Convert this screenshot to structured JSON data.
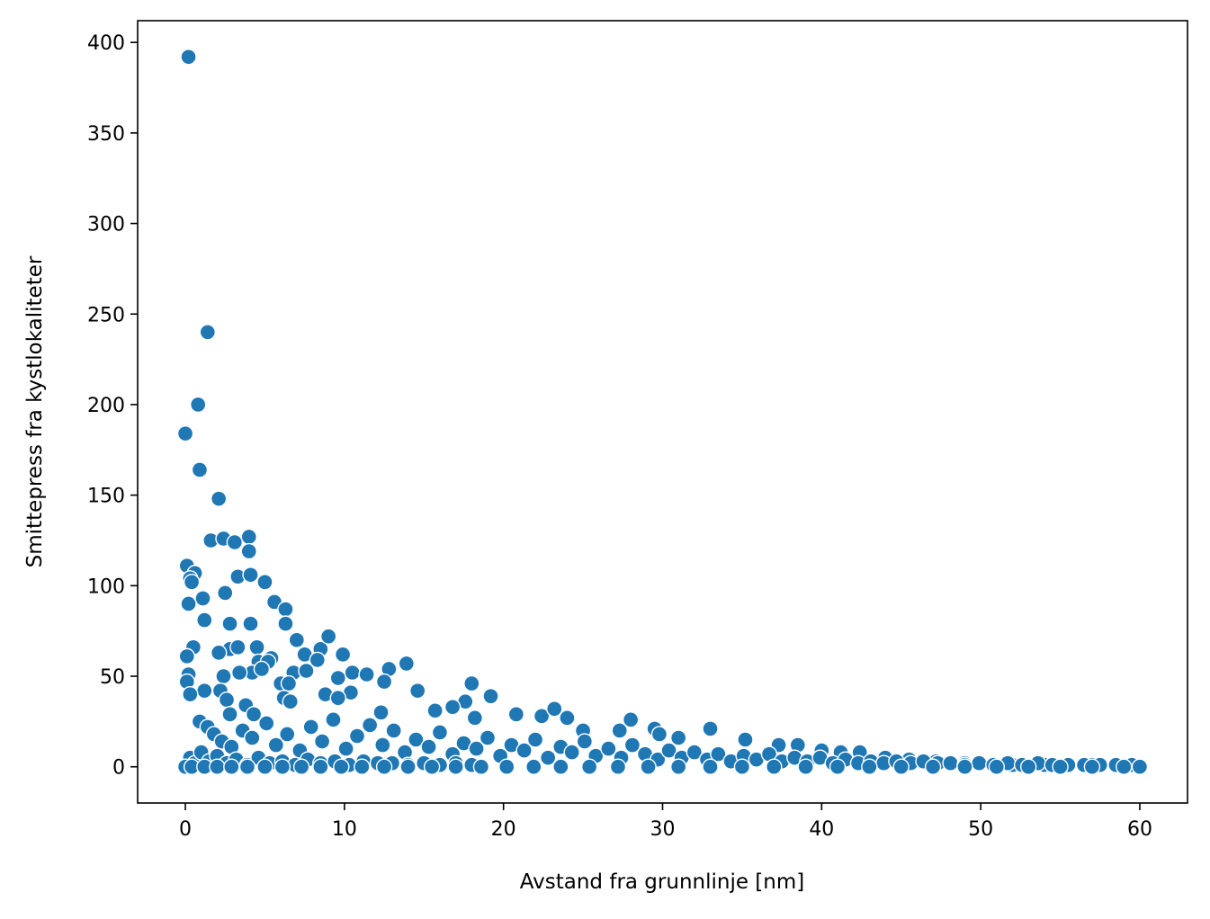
{
  "chart_data": {
    "type": "scatter",
    "title": "",
    "xlabel": "Avstand fra grunnlinje [nm]",
    "ylabel": "Smittepress fra kystlokaliteter",
    "xlim": [
      -3,
      63
    ],
    "ylim": [
      -20,
      412
    ],
    "xticks": [
      0,
      10,
      20,
      30,
      40,
      50,
      60
    ],
    "yticks": [
      0,
      50,
      100,
      150,
      200,
      250,
      300,
      350,
      400
    ],
    "grid": false,
    "legend": "none",
    "colors": {
      "marker": "#1f77b4",
      "marker_edge": "#ffffff",
      "axes": "#000000",
      "background": "#ffffff"
    },
    "series": [
      {
        "points": [
          [
            0.2,
            392
          ],
          [
            1.4,
            240
          ],
          [
            0.8,
            200
          ],
          [
            0.0,
            184
          ],
          [
            0.9,
            164
          ],
          [
            2.1,
            148
          ],
          [
            1.6,
            125
          ],
          [
            2.4,
            126
          ],
          [
            3.1,
            124
          ],
          [
            4.0,
            127
          ],
          [
            4.0,
            119
          ],
          [
            0.1,
            111
          ],
          [
            0.6,
            107
          ],
          [
            3.3,
            105
          ],
          [
            4.1,
            106
          ],
          [
            0.3,
            104
          ],
          [
            0.4,
            102
          ],
          [
            5.0,
            102
          ],
          [
            2.5,
            96
          ],
          [
            1.1,
            93
          ],
          [
            5.6,
            91
          ],
          [
            0.2,
            90
          ],
          [
            6.3,
            87
          ],
          [
            1.2,
            81
          ],
          [
            2.8,
            79
          ],
          [
            4.1,
            79
          ],
          [
            6.3,
            79
          ],
          [
            0.5,
            66
          ],
          [
            2.8,
            65
          ],
          [
            3.3,
            66
          ],
          [
            4.5,
            66
          ],
          [
            7.0,
            70
          ],
          [
            8.5,
            65
          ],
          [
            9.0,
            72
          ],
          [
            2.1,
            63
          ],
          [
            5.4,
            60
          ],
          [
            9.9,
            62
          ],
          [
            7.5,
            62
          ],
          [
            0.1,
            61
          ],
          [
            4.6,
            58
          ],
          [
            5.2,
            58
          ],
          [
            8.3,
            59
          ],
          [
            12.8,
            54
          ],
          [
            13.9,
            57
          ],
          [
            4.2,
            52
          ],
          [
            3.4,
            52
          ],
          [
            0.2,
            51
          ],
          [
            2.4,
            50
          ],
          [
            4.8,
            54
          ],
          [
            6.8,
            52
          ],
          [
            7.6,
            53
          ],
          [
            10.5,
            52
          ],
          [
            11.4,
            51
          ],
          [
            9.6,
            49
          ],
          [
            12.5,
            47
          ],
          [
            6.0,
            46
          ],
          [
            6.5,
            46
          ],
          [
            0.1,
            47
          ],
          [
            14.6,
            42
          ],
          [
            1.2,
            42
          ],
          [
            2.2,
            42
          ],
          [
            10.4,
            41
          ],
          [
            8.8,
            40
          ],
          [
            0.3,
            40
          ],
          [
            17.6,
            36
          ],
          [
            18.0,
            46
          ],
          [
            19.2,
            39
          ],
          [
            9.6,
            38
          ],
          [
            6.2,
            38
          ],
          [
            6.6,
            36
          ],
          [
            2.6,
            37
          ],
          [
            3.8,
            34
          ],
          [
            4.3,
            29
          ],
          [
            2.8,
            29
          ],
          [
            12.3,
            30
          ],
          [
            15.7,
            31
          ],
          [
            16.8,
            33
          ],
          [
            18.2,
            27
          ],
          [
            20.8,
            29
          ],
          [
            22.4,
            28
          ],
          [
            23.2,
            32
          ],
          [
            24.0,
            27
          ],
          [
            25.0,
            20
          ],
          [
            27.3,
            20
          ],
          [
            28.0,
            26
          ],
          [
            29.5,
            21
          ],
          [
            29.8,
            18
          ],
          [
            31.0,
            16
          ],
          [
            33.0,
            21
          ],
          [
            35.2,
            15
          ],
          [
            37.3,
            12
          ],
          [
            38.5,
            12
          ],
          [
            40.0,
            9
          ],
          [
            41.2,
            8
          ],
          [
            42.4,
            8
          ],
          [
            44.0,
            5
          ],
          [
            45.5,
            4
          ],
          [
            47.2,
            3
          ],
          [
            49.0,
            2
          ],
          [
            52.0,
            1
          ],
          [
            54.0,
            1
          ],
          [
            57.0,
            1
          ],
          [
            0.9,
            25
          ],
          [
            1.4,
            22
          ],
          [
            1.8,
            18
          ],
          [
            2.3,
            14
          ],
          [
            2.9,
            11
          ],
          [
            3.6,
            20
          ],
          [
            4.2,
            16
          ],
          [
            5.1,
            24
          ],
          [
            5.7,
            12
          ],
          [
            6.4,
            18
          ],
          [
            7.2,
            9
          ],
          [
            7.9,
            22
          ],
          [
            8.6,
            14
          ],
          [
            9.3,
            26
          ],
          [
            10.1,
            10
          ],
          [
            10.8,
            17
          ],
          [
            11.6,
            23
          ],
          [
            12.4,
            12
          ],
          [
            13.1,
            20
          ],
          [
            13.8,
            8
          ],
          [
            14.5,
            15
          ],
          [
            15.3,
            11
          ],
          [
            16.0,
            19
          ],
          [
            16.8,
            7
          ],
          [
            17.5,
            13
          ],
          [
            18.3,
            10
          ],
          [
            19.0,
            16
          ],
          [
            19.8,
            6
          ],
          [
            20.5,
            12
          ],
          [
            21.3,
            9
          ],
          [
            22.0,
            15
          ],
          [
            22.8,
            5
          ],
          [
            23.6,
            11
          ],
          [
            24.3,
            8
          ],
          [
            25.1,
            14
          ],
          [
            25.8,
            6
          ],
          [
            26.6,
            10
          ],
          [
            27.4,
            5
          ],
          [
            28.1,
            12
          ],
          [
            28.9,
            7
          ],
          [
            29.7,
            4
          ],
          [
            30.4,
            9
          ],
          [
            31.2,
            5
          ],
          [
            32.0,
            8
          ],
          [
            32.8,
            4
          ],
          [
            33.5,
            7
          ],
          [
            34.3,
            3
          ],
          [
            35.1,
            6
          ],
          [
            35.9,
            4
          ],
          [
            36.7,
            7
          ],
          [
            37.5,
            3
          ],
          [
            38.3,
            5
          ],
          [
            39.1,
            3
          ],
          [
            39.9,
            5
          ],
          [
            40.7,
            2
          ],
          [
            41.5,
            4
          ],
          [
            42.3,
            2
          ],
          [
            43.1,
            3
          ],
          [
            43.9,
            2
          ],
          [
            44.7,
            3
          ],
          [
            45.6,
            2
          ],
          [
            46.4,
            3
          ],
          [
            47.3,
            2
          ],
          [
            48.1,
            2
          ],
          [
            49.0,
            1
          ],
          [
            49.9,
            2
          ],
          [
            50.8,
            1
          ],
          [
            51.7,
            2
          ],
          [
            52.6,
            1
          ],
          [
            53.6,
            2
          ],
          [
            54.5,
            1
          ],
          [
            55.5,
            1
          ],
          [
            56.5,
            1
          ],
          [
            57.5,
            1
          ],
          [
            58.5,
            1
          ],
          [
            59.5,
            1
          ],
          [
            0.3,
            5
          ],
          [
            0.6,
            2
          ],
          [
            1.0,
            8
          ],
          [
            1.5,
            3
          ],
          [
            2.0,
            6
          ],
          [
            2.6,
            2
          ],
          [
            3.2,
            4
          ],
          [
            3.9,
            1
          ],
          [
            4.6,
            5
          ],
          [
            5.3,
            2
          ],
          [
            6.1,
            3
          ],
          [
            6.9,
            1
          ],
          [
            7.7,
            4
          ],
          [
            8.5,
            2
          ],
          [
            9.4,
            3
          ],
          [
            10.3,
            1
          ],
          [
            11.2,
            3
          ],
          [
            12.1,
            2
          ],
          [
            13.0,
            2
          ],
          [
            14.0,
            1
          ],
          [
            15.0,
            2
          ],
          [
            16.0,
            1
          ],
          [
            17.0,
            2
          ],
          [
            18.0,
            1
          ],
          [
            0.0,
            0
          ],
          [
            0.4,
            0
          ],
          [
            1.2,
            0
          ],
          [
            2.0,
            0
          ],
          [
            2.9,
            0
          ],
          [
            3.9,
            0
          ],
          [
            5.0,
            0
          ],
          [
            6.1,
            0
          ],
          [
            7.3,
            0
          ],
          [
            8.5,
            0
          ],
          [
            9.8,
            0
          ],
          [
            11.1,
            0
          ],
          [
            12.5,
            0
          ],
          [
            14.0,
            0
          ],
          [
            15.5,
            0
          ],
          [
            17.0,
            0
          ],
          [
            18.6,
            0
          ],
          [
            20.2,
            0
          ],
          [
            21.9,
            0
          ],
          [
            23.6,
            0
          ],
          [
            25.4,
            0
          ],
          [
            27.2,
            0
          ],
          [
            29.1,
            0
          ],
          [
            31.0,
            0
          ],
          [
            33.0,
            0
          ],
          [
            35.0,
            0
          ],
          [
            37.0,
            0
          ],
          [
            39.0,
            0
          ],
          [
            41.0,
            0
          ],
          [
            43.0,
            0
          ],
          [
            45.0,
            0
          ],
          [
            47.0,
            0
          ],
          [
            49.0,
            0
          ],
          [
            51.0,
            0
          ],
          [
            53.0,
            0
          ],
          [
            55.0,
            0
          ],
          [
            57.0,
            0
          ],
          [
            59.0,
            0
          ],
          [
            60.0,
            0
          ]
        ]
      }
    ]
  }
}
